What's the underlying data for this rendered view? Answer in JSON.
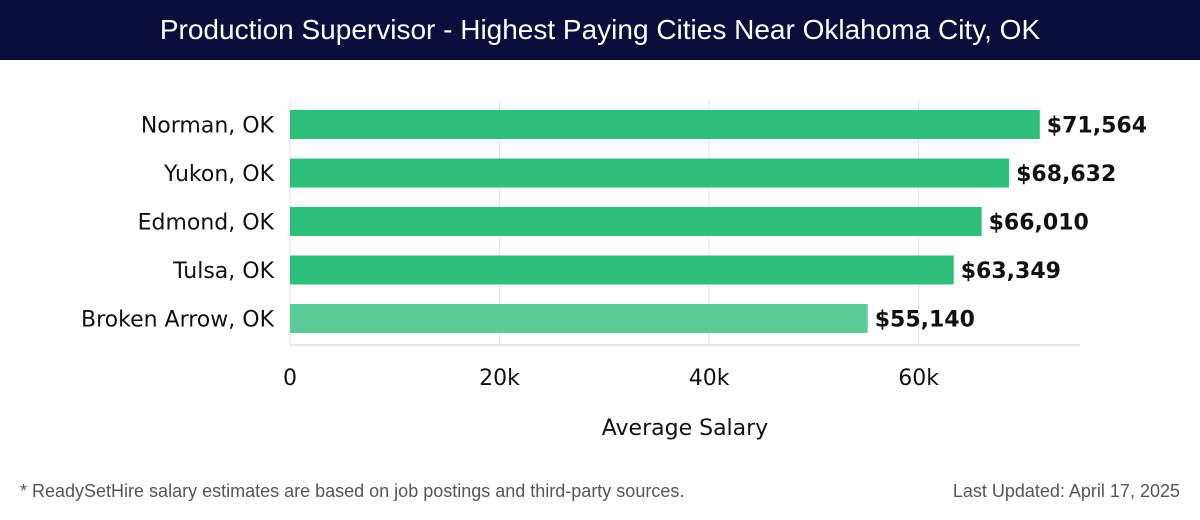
{
  "header": {
    "title": "Production Supervisor - Highest Paying Cities Near Oklahoma City, OK"
  },
  "chart_data": {
    "type": "bar",
    "orientation": "horizontal",
    "title": "Production Supervisor - Highest Paying Cities Near Oklahoma City, OK",
    "categories": [
      "Norman, OK",
      "Yukon, OK",
      "Edmond, OK",
      "Tulsa, OK",
      "Broken Arrow, OK"
    ],
    "values": [
      71564,
      68632,
      66010,
      63349,
      55140
    ],
    "value_labels": [
      "$71,564",
      "$68,632",
      "$66,010",
      "$63,349",
      "$55,140"
    ],
    "xlabel": "Average Salary",
    "ylabel": "",
    "xlim": [
      0,
      75400
    ],
    "x_ticks": [
      0,
      20000,
      40000,
      60000
    ],
    "x_tick_labels": [
      "0",
      "20k",
      "40k",
      "60k"
    ],
    "grid": "vertical",
    "colors": {
      "bar": "#2ebf7a",
      "bar_last": "#5ccb98",
      "grid": "#e2e2e2",
      "axis": "#cccccc"
    }
  },
  "footer": {
    "note": "* ReadySetHire salary estimates are based on job postings and third-party sources.",
    "last_updated": "Last Updated: April 17, 2025"
  }
}
